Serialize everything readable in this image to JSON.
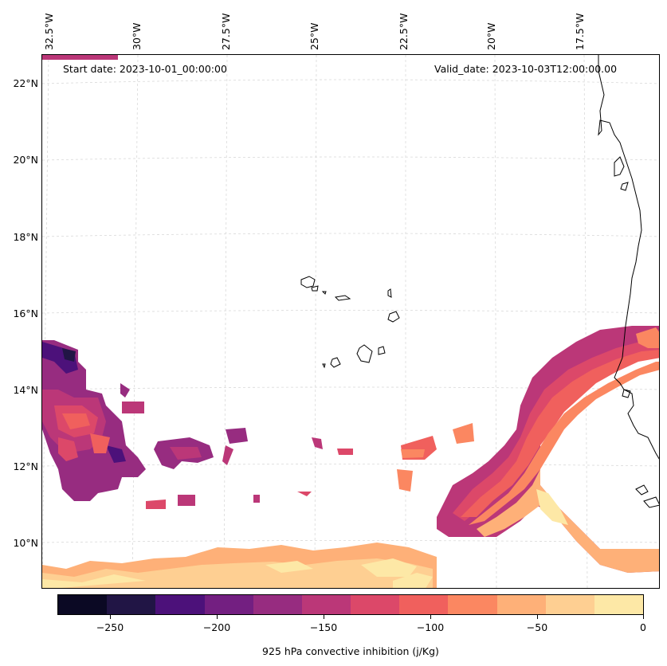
{
  "map": {
    "start_date": "Start date: 2023-10-01_00:00:00",
    "valid_date": "Valid_date: 2023-10-03T12:00:00.00",
    "lon_labels": [
      "32.5°W",
      "30°W",
      "27.5°W",
      "25°W",
      "22.5°W",
      "20°W",
      "17.5°W"
    ],
    "lat_labels": [
      "22°N",
      "20°N",
      "18°N",
      "16°N",
      "14°N",
      "12°N",
      "10°N"
    ],
    "variable": "925 hPa convective inhibition (j/Kg)"
  },
  "colorbar": {
    "levels": [
      "-275",
      "-250",
      "-225",
      "-200",
      "-175",
      "-150",
      "-125",
      "-100",
      "-75",
      "-50",
      "-25",
      "0"
    ],
    "colors": [
      "#0b0924",
      "#211545",
      "#4c117a",
      "#731f81",
      "#972c80",
      "#bb3778",
      "#dc4869",
      "#f0605d",
      "#fb8761",
      "#feb078",
      "#fecf92",
      "#fde8a6"
    ],
    "tick_labels": [
      "−250",
      "−200",
      "−150",
      "−100",
      "−50",
      "0"
    ]
  },
  "colors": {
    "coast": "#000000",
    "grid": "#d9d9d9",
    "background": "#ffffff"
  }
}
